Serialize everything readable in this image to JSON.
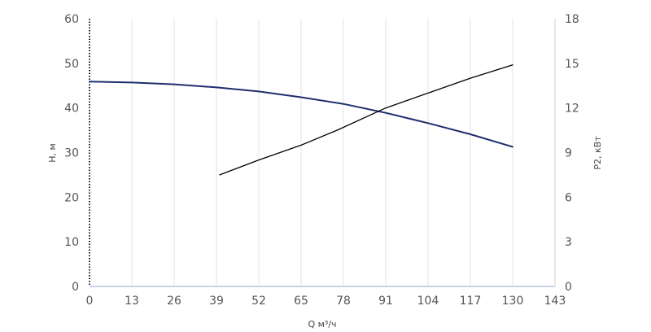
{
  "chart_data": {
    "type": "line",
    "xlabel": "Q м³/ч",
    "ylabel_left": "H, м",
    "ylabel_right": "P2, кВт",
    "x_ticks": [
      0,
      13,
      26,
      39,
      52,
      65,
      78,
      91,
      104,
      117,
      130,
      143
    ],
    "y_left_ticks": [
      0,
      10,
      20,
      30,
      40,
      50,
      60
    ],
    "y_right_ticks": [
      0,
      3,
      6,
      9,
      12,
      15,
      18
    ],
    "xlim": [
      0,
      143
    ],
    "ylim_left": [
      0,
      60
    ],
    "ylim_right": [
      0,
      18
    ],
    "grid": "vertical",
    "series": [
      {
        "axis": "left",
        "color": "#1f2e6e",
        "x": [
          0,
          13,
          26,
          39,
          52,
          65,
          78,
          91,
          104,
          117,
          130
        ],
        "y": [
          45.9,
          45.7,
          45.3,
          44.6,
          43.7,
          42.4,
          40.9,
          38.9,
          36.6,
          34.1,
          31.3
        ]
      },
      {
        "axis": "right",
        "color": "#000000",
        "x": [
          40,
          52,
          65,
          76,
          91,
          104,
          117,
          130
        ],
        "y": [
          7.5,
          8.5,
          9.5,
          10.5,
          12.0,
          13.0,
          14.0,
          14.9
        ]
      }
    ]
  }
}
